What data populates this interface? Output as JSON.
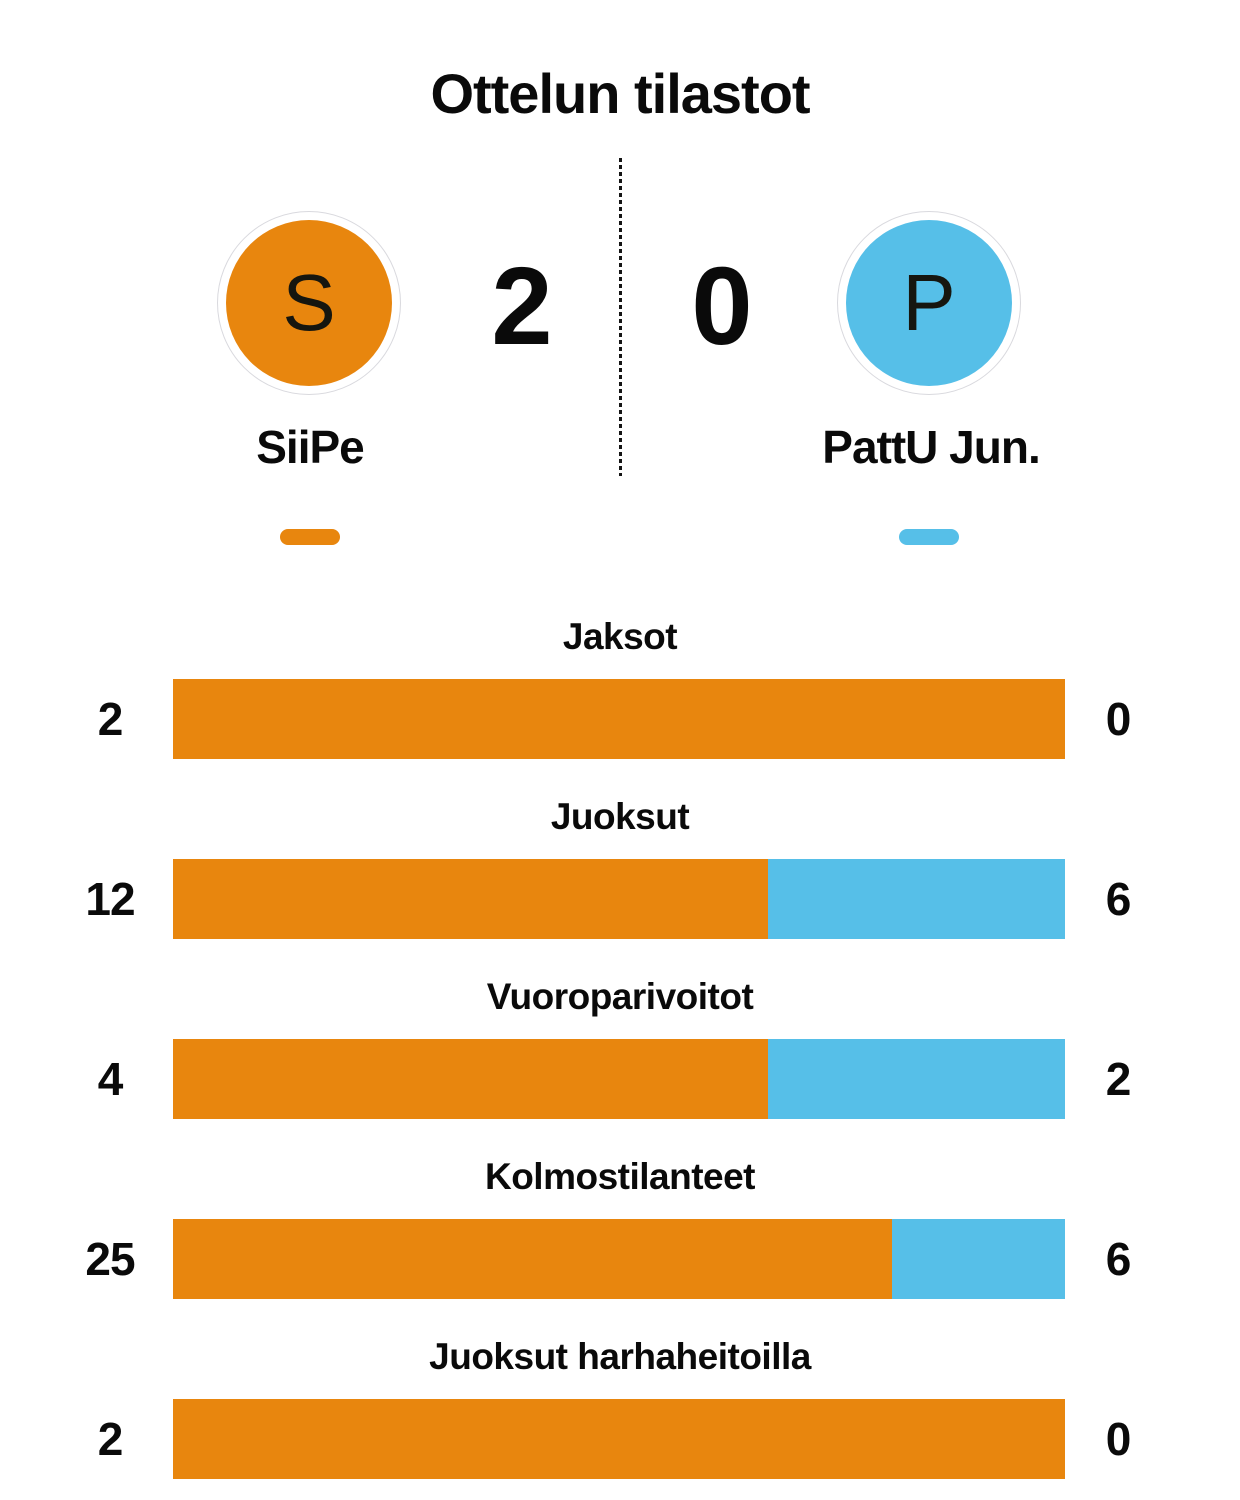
{
  "title": "Ottelun tilastot",
  "colors": {
    "home": "#E8860E",
    "away": "#56BFE8"
  },
  "scoreboard": {
    "home": {
      "initial": "S",
      "name": "SiiPe",
      "score": "2"
    },
    "away": {
      "initial": "P",
      "name": "PattU Jun.",
      "score": "0"
    }
  },
  "stats": {
    "rows": [
      {
        "label": "Jaksot",
        "home": 2,
        "away": 0
      },
      {
        "label": "Juoksut",
        "home": 12,
        "away": 6
      },
      {
        "label": "Vuoroparivoitot",
        "home": 4,
        "away": 2
      },
      {
        "label": "Kolmostilanteet",
        "home": 25,
        "away": 6
      },
      {
        "label": "Juoksut harhaheitoilla",
        "home": 2,
        "away": 0
      }
    ]
  },
  "chart_data": {
    "type": "bar",
    "title": "Ottelun tilastot",
    "categories": [
      "Jaksot",
      "Juoksut",
      "Vuoroparivoitot",
      "Kolmostilanteet",
      "Juoksut harhaheitoilla"
    ],
    "series": [
      {
        "name": "SiiPe",
        "color": "#E8860E",
        "values": [
          2,
          12,
          4,
          25,
          2
        ]
      },
      {
        "name": "PattU Jun.",
        "color": "#56BFE8",
        "values": [
          0,
          6,
          2,
          6,
          0
        ]
      }
    ],
    "layout": "horizontal-stacked-proportional",
    "value_labels": "both-ends",
    "legend_position": "top-under-team-names",
    "grid": false
  }
}
